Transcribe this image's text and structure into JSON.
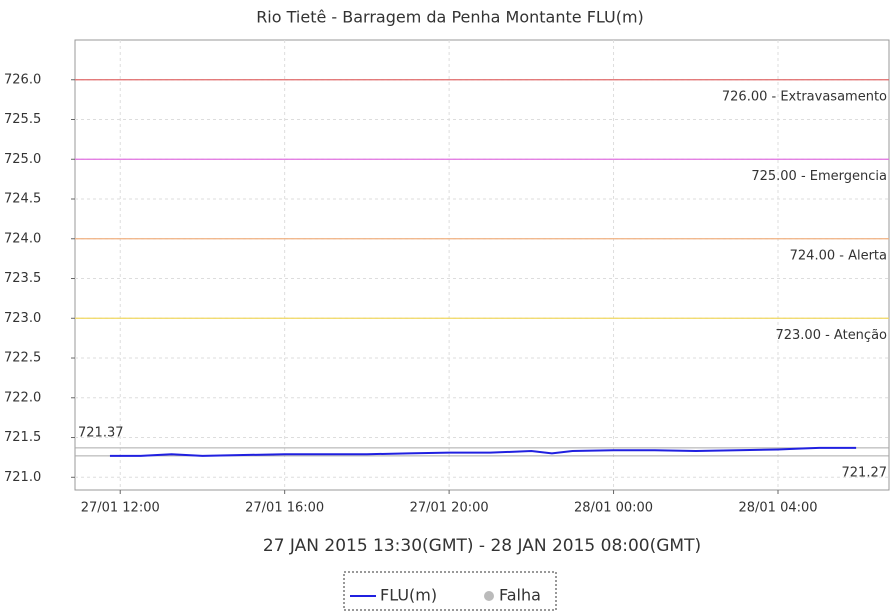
{
  "chart_data": {
    "type": "line",
    "title": "Rio Tietê - Barragem da Penha Montante FLU(m)",
    "xlabel": "27 JAN 2015 13:30(GMT) - 28 JAN 2015 08:00(GMT)",
    "x": [
      11.75,
      12.5,
      13.25,
      14,
      15,
      16,
      17,
      18,
      19,
      20,
      21,
      22,
      22.5,
      23,
      24,
      25,
      26,
      27,
      28,
      28.5,
      29,
      29.9
    ],
    "series": [
      {
        "name": "FLU(m)",
        "color": "#2020e0",
        "values": [
          721.27,
          721.27,
          721.29,
          721.27,
          721.28,
          721.29,
          721.29,
          721.29,
          721.3,
          721.31,
          721.31,
          721.33,
          721.3,
          721.33,
          721.34,
          721.34,
          721.33,
          721.34,
          721.35,
          721.36,
          721.37,
          721.37
        ]
      }
    ],
    "extra_legend": {
      "name": "Falha",
      "color": "#bbbbbb"
    },
    "xlim": [
      10.9,
      30.7
    ],
    "xticks": [
      {
        "value": 12,
        "label": "27/01 12:00"
      },
      {
        "value": 16,
        "label": "27/01 16:00"
      },
      {
        "value": 20,
        "label": "27/01 20:00"
      },
      {
        "value": 24,
        "label": "28/01 00:00"
      },
      {
        "value": 28,
        "label": "28/01 04:00"
      }
    ],
    "ylim": [
      720.84,
      726.5
    ],
    "yticks": [
      {
        "value": 721,
        "label": "721.0"
      },
      {
        "value": 721.5,
        "label": "721.5"
      },
      {
        "value": 722,
        "label": "722.0"
      },
      {
        "value": 722.5,
        "label": "722.5"
      },
      {
        "value": 723,
        "label": "723.0"
      },
      {
        "value": 723.5,
        "label": "723.5"
      },
      {
        "value": 724,
        "label": "724.0"
      },
      {
        "value": 724.5,
        "label": "724.5"
      },
      {
        "value": 725,
        "label": "725.0"
      },
      {
        "value": 725.5,
        "label": "725.5"
      },
      {
        "value": 726,
        "label": "726.0"
      }
    ],
    "grid": true,
    "thresholds": [
      {
        "value": 726,
        "label": "726.00 - Extravasamento",
        "color": "#e06a6a"
      },
      {
        "value": 725,
        "label": "725.00 - Emergencia",
        "color": "#e070e0"
      },
      {
        "value": 724,
        "label": "724.00 - Alerta",
        "color": "#f0b080"
      },
      {
        "value": 723,
        "label": "723.00 - Atenção",
        "color": "#f0d860"
      }
    ],
    "references": [
      {
        "value": 721.37,
        "label": "721.37"
      },
      {
        "value": 721.27,
        "label": "721.27"
      }
    ]
  }
}
